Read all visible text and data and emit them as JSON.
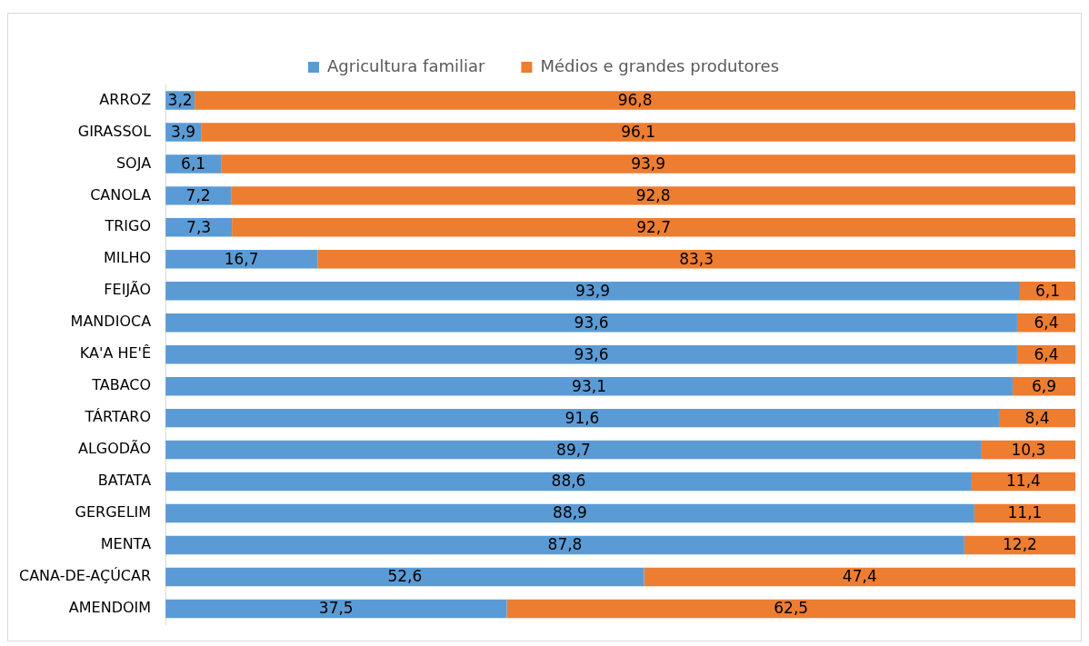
{
  "chart_data": {
    "type": "bar",
    "orientation": "horizontal",
    "stacked": true,
    "legend": "top",
    "tick_labels": "y",
    "xlim": [
      0,
      100
    ],
    "categories": [
      "ARROZ",
      "GIRASSOL",
      "SOJA",
      "CANOLA",
      "TRIGO",
      "MILHO",
      "FEIJÃO",
      "MANDIOCA",
      "KA'A HE'Ê",
      "TABACO",
      "TÁRTARO",
      "ALGODÃO",
      "BATATA",
      "GERGELIM",
      "MENTA",
      "CANA-DE-AÇÚCAR",
      "AMENDOIM"
    ],
    "series": [
      {
        "name": "Agricultura familiar",
        "color": "#5b9bd5",
        "values": [
          3.2,
          3.9,
          6.1,
          7.2,
          7.3,
          16.7,
          93.9,
          93.6,
          93.6,
          93.1,
          91.6,
          89.7,
          88.6,
          88.9,
          87.8,
          52.6,
          37.5
        ],
        "value_labels": [
          "3,2",
          "3,9",
          "6,1",
          "7,2",
          "7,3",
          "16,7",
          "93,9",
          "93,6",
          "93,6",
          "93,1",
          "91,6",
          "89,7",
          "88,6",
          "88,9",
          "87,8",
          "52,6",
          "37,5"
        ]
      },
      {
        "name": "Médios e grandes produtores",
        "color": "#ed7d31",
        "values": [
          96.8,
          96.1,
          93.9,
          92.8,
          92.7,
          83.3,
          6.1,
          6.4,
          6.4,
          6.9,
          8.4,
          10.3,
          11.4,
          11.1,
          12.2,
          47.4,
          62.5
        ],
        "value_labels": [
          "96,8",
          "96,1",
          "93,9",
          "92,8",
          "92,7",
          "83,3",
          "6,1",
          "6,4",
          "6,4",
          "6,9",
          "8,4",
          "10,3",
          "11,4",
          "11,1",
          "12,2",
          "47,4",
          "62,5"
        ]
      }
    ]
  }
}
